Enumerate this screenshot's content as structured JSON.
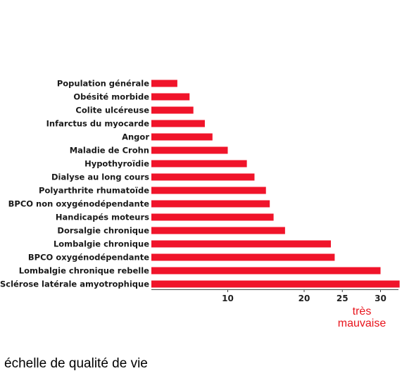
{
  "chart_data": {
    "type": "bar",
    "orientation": "horizontal",
    "categories": [
      "Population générale",
      "Obésité morbide",
      "Colite ulcéreuse",
      "Infarctus du myocarde",
      "Angor",
      "Maladie de Crohn",
      "Hypothyroïdie",
      "Dialyse au long cours",
      "Polyarthrite rhumatoïde",
      "BPCO non oxygénodépendante",
      "Handicapés moteurs",
      "Dorsalgie chronique",
      "Lombalgie chronique",
      "BPCO oxygénodépendante",
      "Lombalgie chronique rebelle",
      "Sclérose latérale amyotrophique"
    ],
    "values": [
      3.4,
      5,
      5.5,
      7,
      8,
      10,
      12.5,
      13.5,
      15,
      15.5,
      16,
      17.5,
      23.5,
      24,
      30,
      32.5
    ],
    "x_ticks": [
      "10",
      "20",
      "25",
      "30"
    ],
    "x_tick_values": [
      10,
      20,
      25,
      30
    ],
    "xlim": [
      0,
      32.5
    ],
    "bar_color": "#f0142a",
    "grid": false,
    "annotation": "très mauvaise",
    "annotation_color": "#e8141c",
    "xlabel": "échelle de qualité de vie"
  }
}
